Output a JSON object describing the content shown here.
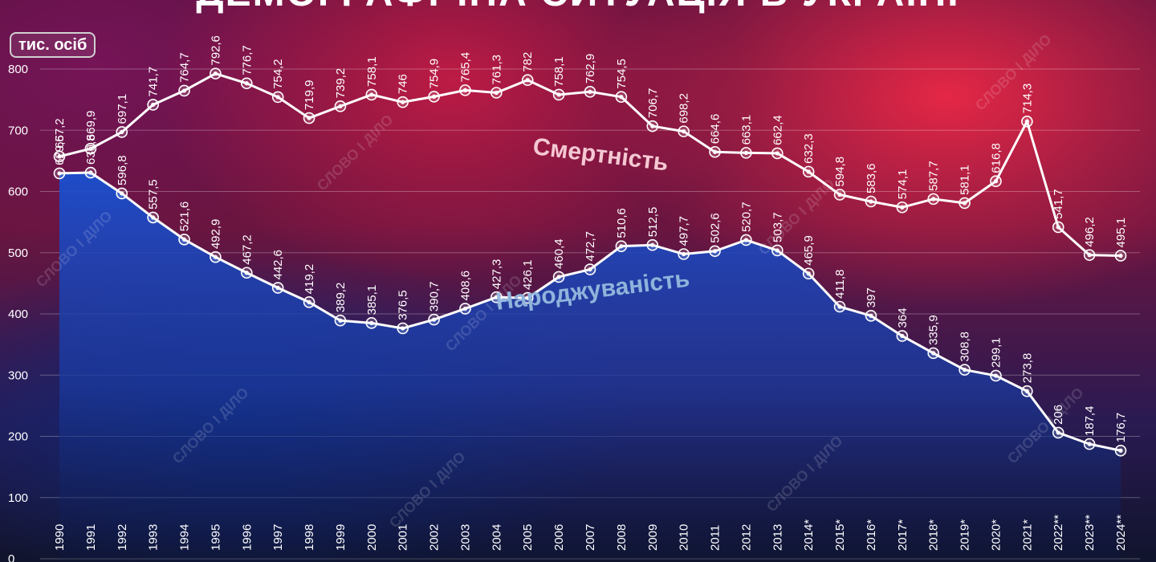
{
  "title": "ДЕМОГРАФІЧНА СИТУАЦІЯ В УКРАЇНІ",
  "unit": "тис. осіб",
  "watermark": "СЛОВО І ДІЛО",
  "colors": {
    "deaths_line": "#ffffff",
    "births_line": "#ffffff",
    "births_area": "#1a4fd0",
    "deaths_label": "#f5c8d3",
    "births_label": "#8fb4dc"
  },
  "chart_data": {
    "type": "line",
    "title": "ДЕМОГРАФІЧНА СИТУАЦІЯ В УКРАЇНІ",
    "ylabel": "тис. осіб",
    "xlabel": "",
    "ylim": [
      0,
      800
    ],
    "yticks": [
      0,
      100,
      200,
      300,
      400,
      500,
      600,
      700,
      800
    ],
    "grid": true,
    "categories": [
      "1990",
      "1991",
      "1992",
      "1993",
      "1994",
      "1995",
      "1996",
      "1997",
      "1998",
      "1999",
      "2000",
      "2001",
      "2002",
      "2003",
      "2004",
      "2005",
      "2006",
      "2007",
      "2008",
      "2009",
      "2010",
      "2011",
      "2012",
      "2013",
      "2014*",
      "2015*",
      "2016*",
      "2017*",
      "2018*",
      "2019*",
      "2020*",
      "2021*",
      "2022**",
      "2023**",
      "2024**"
    ],
    "series": [
      {
        "name": "Смертність",
        "values": [
          657.2,
          669.9,
          697.1,
          741.7,
          764.7,
          792.6,
          776.7,
          754.2,
          719.9,
          739.2,
          758.1,
          746,
          754.9,
          765.4,
          761.3,
          782,
          758.1,
          762.9,
          754.5,
          706.7,
          698.2,
          664.6,
          663.1,
          662.4,
          632.3,
          594.8,
          583.6,
          574.1,
          587.7,
          581.1,
          616.8,
          714.3,
          541.7,
          496.2,
          495.1
        ],
        "labels": [
          "657,2",
          "669,9",
          "697,1",
          "741,7",
          "764,7",
          "792,6",
          "776,7",
          "754,2",
          "719,9",
          "739,2",
          "758,1",
          "746",
          "754,9",
          "765,4",
          "761,3",
          "782",
          "758,1",
          "762,9",
          "754,5",
          "706,7",
          "698,2",
          "664,6",
          "663,1",
          "662,4",
          "632,3",
          "594,8",
          "583,6",
          "574,1",
          "587,7",
          "581,1",
          "616,8",
          "714,3",
          "541,7",
          "496,2",
          "495,1"
        ]
      },
      {
        "name": "Народжуваність",
        "values": [
          629.6,
          630.8,
          596.8,
          557.5,
          521.6,
          492.9,
          467.2,
          442.6,
          419.2,
          389.2,
          385.1,
          376.5,
          390.7,
          408.6,
          427.3,
          426.1,
          460.4,
          472.7,
          510.6,
          512.5,
          497.7,
          502.6,
          520.7,
          503.7,
          465.9,
          411.8,
          397,
          364,
          335.9,
          308.8,
          299.1,
          273.8,
          206,
          187.4,
          176.7
        ],
        "labels": [
          "629,6",
          "630,8",
          "596,8",
          "557,5",
          "521,6",
          "492,9",
          "467,2",
          "442,6",
          "419,2",
          "389,2",
          "385,1",
          "376,5",
          "390,7",
          "408,6",
          "427,3",
          "426,1",
          "460,4",
          "472,7",
          "510,6",
          "512,5",
          "497,7",
          "502,6",
          "520,7",
          "503,7",
          "465,9",
          "411,8",
          "397",
          "364",
          "335,9",
          "308,8",
          "299,1",
          "273,8",
          "206",
          "187,4",
          "176,7"
        ]
      }
    ]
  }
}
